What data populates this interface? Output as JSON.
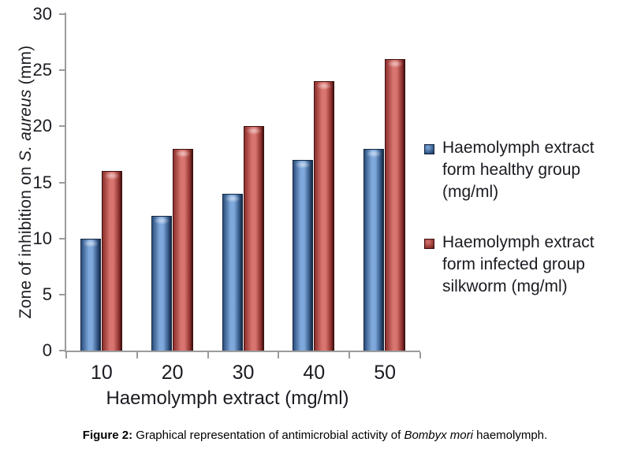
{
  "chart_data": {
    "type": "bar",
    "categories": [
      "10",
      "20",
      "30",
      "40",
      "50"
    ],
    "series": [
      {
        "name": "Haemolymph extract form healthy group (mg/ml)",
        "values": [
          10,
          12,
          14,
          17,
          18
        ],
        "color": {
          "center": "#7fa9dc",
          "edge": "#2c4f7c",
          "border": "#16263f"
        }
      },
      {
        "name": "Haemolymph extract form infected group silkworm (mg/ml)",
        "values": [
          16,
          18,
          20,
          24,
          26
        ],
        "color": {
          "center": "#d97570",
          "edge": "#8c2f2c",
          "border": "#3d110f"
        }
      }
    ],
    "xlabel": "Haemolymph extract (mg/ml)",
    "ylabel_prefix": "Zone of inhibition on ",
    "ylabel_italic": "S. aureus",
    "ylabel_suffix": " (mm)",
    "ylim": [
      0,
      30
    ],
    "ytick_step": 5,
    "grid": false,
    "legend_position": "right",
    "axis_color": "#9b9b9b",
    "text_color": "#1b1b22",
    "background": "#ffffff"
  },
  "caption": {
    "label": "Figure 2:",
    "before_italic": " Graphical representation of antimicrobial activity of ",
    "italic": "Bombyx mori",
    "after_italic": " haemolymph."
  }
}
